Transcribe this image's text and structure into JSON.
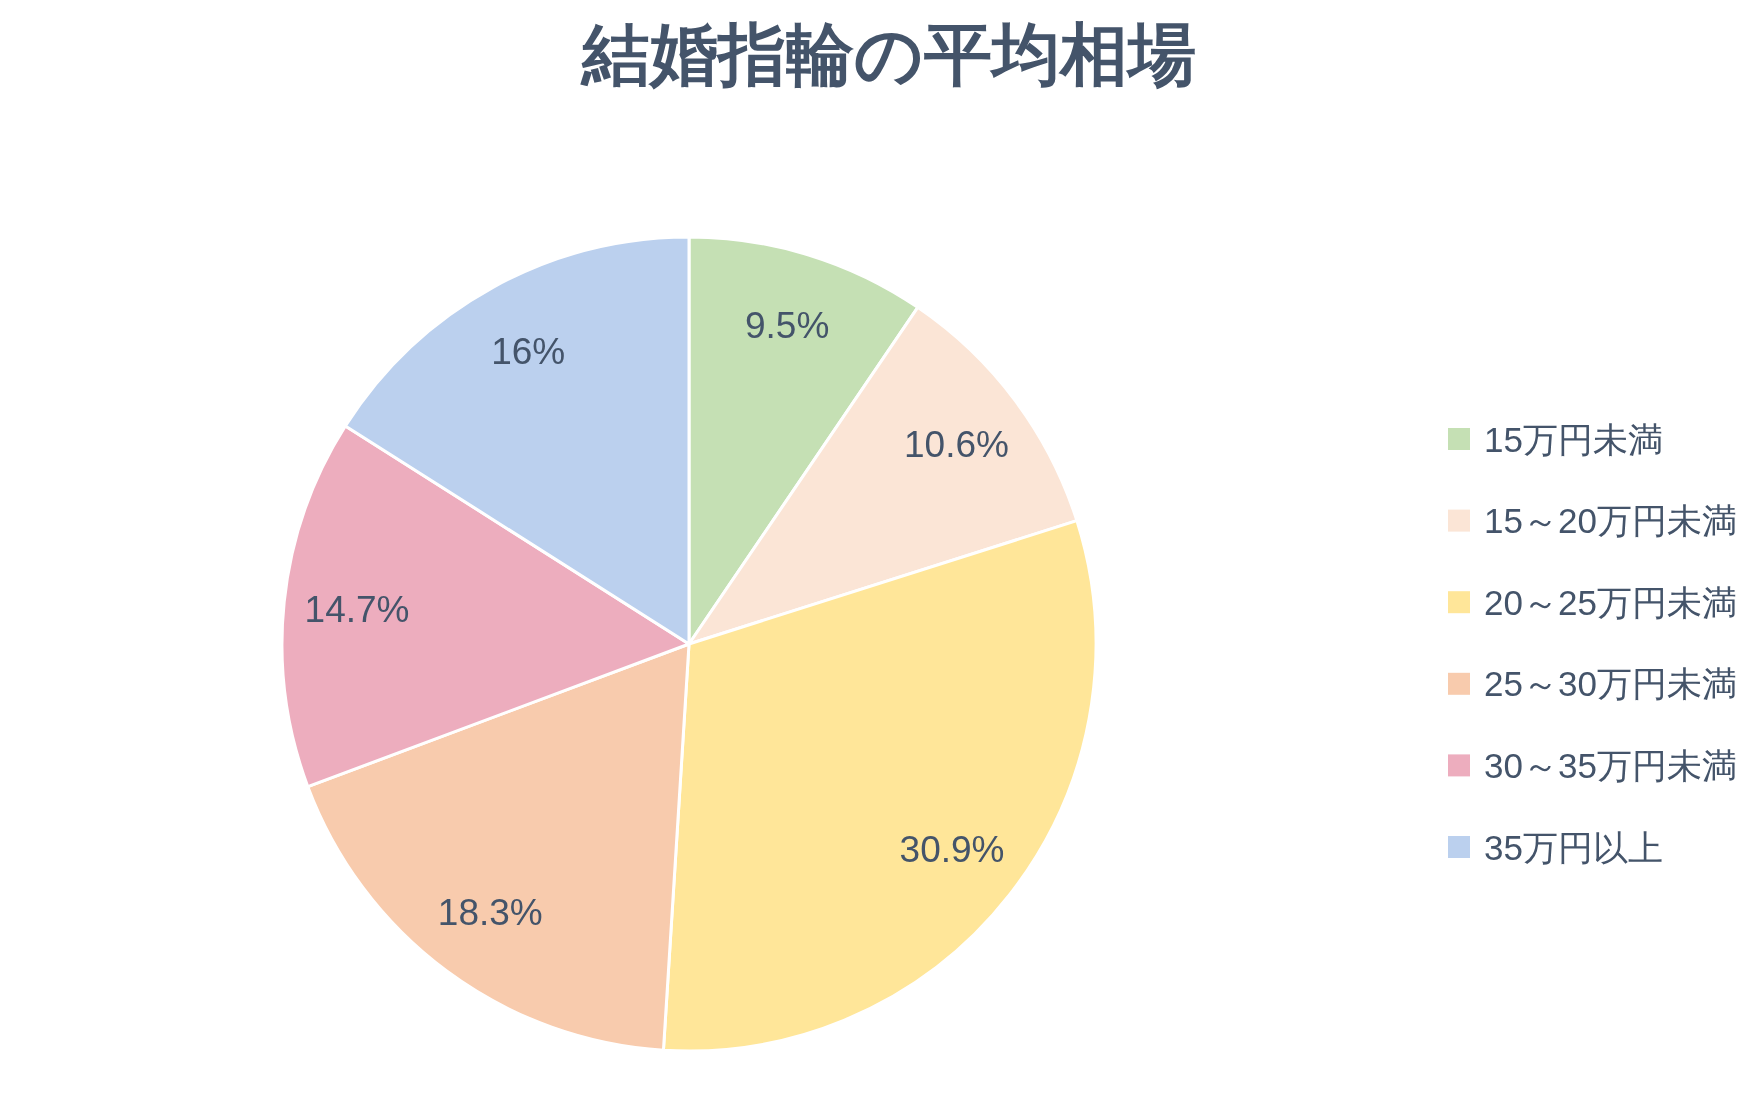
{
  "chart_data": {
    "type": "pie",
    "title": "結婚指輪の平均相場",
    "categories": [
      "15万円未満",
      "15～20万円未満",
      "20～25万円未満",
      "25～30万円未満",
      "30～35万円未満",
      "35万円以上"
    ],
    "values": [
      9.5,
      10.6,
      30.9,
      18.3,
      14.7,
      16
    ],
    "colors": [
      "#c5e0b4",
      "#fbe5d6",
      "#ffe699",
      "#f8cbad",
      "#edadbe",
      "#bbd0ee"
    ],
    "value_labels": [
      "9.5%",
      "10.6%",
      "30.9%",
      "18.3%",
      "14.7%",
      "16%"
    ],
    "legend": "right"
  }
}
